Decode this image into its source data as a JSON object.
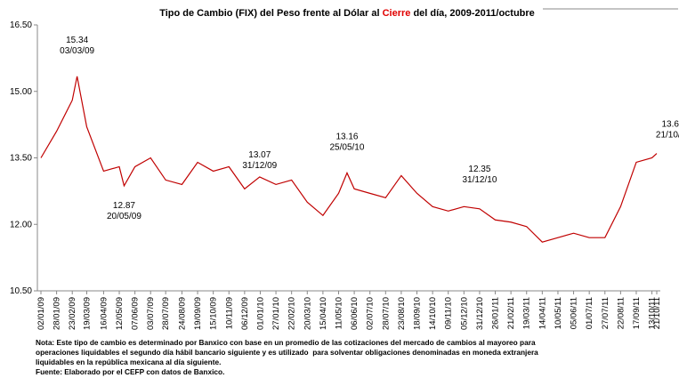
{
  "chart_data": {
    "type": "line",
    "title_parts": [
      "Tipo de Cambio (FIX) del Peso frente al Dólar al ",
      "Cierre",
      " del día, 2009-2011/octubre"
    ],
    "title_colors": [
      "#000000",
      "#e00000",
      "#000000"
    ],
    "x": [
      "02/01/09",
      "28/01/09",
      "23/02/09",
      "03/03/09",
      "19/03/09",
      "16/04/09",
      "12/05/09",
      "20/05/09",
      "07/06/09",
      "03/07/09",
      "28/07/09",
      "24/08/09",
      "19/09/09",
      "15/10/09",
      "10/11/09",
      "06/12/09",
      "31/12/09",
      "27/01/10",
      "22/02/10",
      "20/03/10",
      "15/04/10",
      "11/05/10",
      "25/05/10",
      "06/06/10",
      "02/07/10",
      "28/07/10",
      "23/08/10",
      "18/09/10",
      "14/10/10",
      "09/11/10",
      "05/12/10",
      "31/12/10",
      "26/01/11",
      "21/02/11",
      "19/03/11",
      "14/04/11",
      "10/05/11",
      "05/06/11",
      "01/07/11",
      "27/07/11",
      "22/08/11",
      "17/09/11",
      "13/10/11",
      "21/10/11"
    ],
    "series": [
      {
        "name": "FIX",
        "color": "#c00000",
        "values": [
          13.5,
          14.1,
          14.8,
          15.34,
          14.2,
          13.2,
          13.3,
          12.87,
          13.3,
          13.5,
          13.0,
          12.9,
          13.4,
          13.2,
          13.3,
          12.8,
          13.07,
          12.9,
          13.0,
          12.5,
          12.2,
          12.7,
          13.16,
          12.8,
          12.7,
          12.6,
          13.1,
          12.7,
          12.4,
          12.3,
          12.4,
          12.35,
          12.1,
          12.05,
          11.95,
          11.6,
          11.7,
          11.8,
          11.7,
          11.7,
          12.4,
          13.4,
          13.5,
          13.6
        ]
      }
    ],
    "annotations": [
      {
        "value": "15.34",
        "date": "03/03/09"
      },
      {
        "value": "12.87",
        "date": "20/05/09"
      },
      {
        "value": "13.07",
        "date": "31/12/09"
      },
      {
        "value": "13.16",
        "date": "25/05/10"
      },
      {
        "value": "12.35",
        "date": "31/12/10"
      },
      {
        "value": "13.60",
        "date": "21/10/11"
      }
    ],
    "xticks": [
      "02/01/09",
      "28/01/09",
      "23/02/09",
      "19/03/09",
      "16/04/09",
      "12/05/09",
      "07/06/09",
      "03/07/09",
      "28/07/09",
      "24/08/09",
      "19/09/09",
      "15/10/09",
      "10/11/09",
      "06/12/09",
      "01/01/10",
      "27/01/10",
      "22/02/10",
      "20/03/10",
      "15/04/10",
      "11/05/10",
      "06/06/10",
      "02/07/10",
      "28/07/10",
      "23/08/10",
      "18/09/10",
      "14/10/10",
      "09/11/10",
      "05/12/10",
      "31/12/10",
      "26/01/11",
      "21/02/11",
      "19/03/11",
      "14/04/11",
      "10/05/11",
      "05/06/11",
      "01/07/11",
      "27/07/11",
      "22/08/11",
      "17/09/11",
      "13/10/11",
      "21/10/11"
    ],
    "ylim": [
      10.5,
      16.5
    ],
    "yticks": [
      {
        "value": 10.5,
        "label": "10.50"
      },
      {
        "value": 12,
        "label": "12.00"
      },
      {
        "value": 13.5,
        "label": "13.50"
      },
      {
        "value": 15,
        "label": "15.00"
      },
      {
        "value": 16.5,
        "label": "16.50"
      }
    ],
    "notes": [
      "Nota: Este tipo de cambio es determinado por Banxico con base en un promedio de las cotizaciones del mercado de cambios al mayoreo para",
      "operaciones liquidables el segundo día hábil bancario siguiente y es utilizado  para solventar obligaciones denominadas en moneda extranjera",
      "liquidables en la república mexicana al día siguiente.",
      "Fuente: Elaborado por el CEFP con datos de Banxico."
    ]
  }
}
